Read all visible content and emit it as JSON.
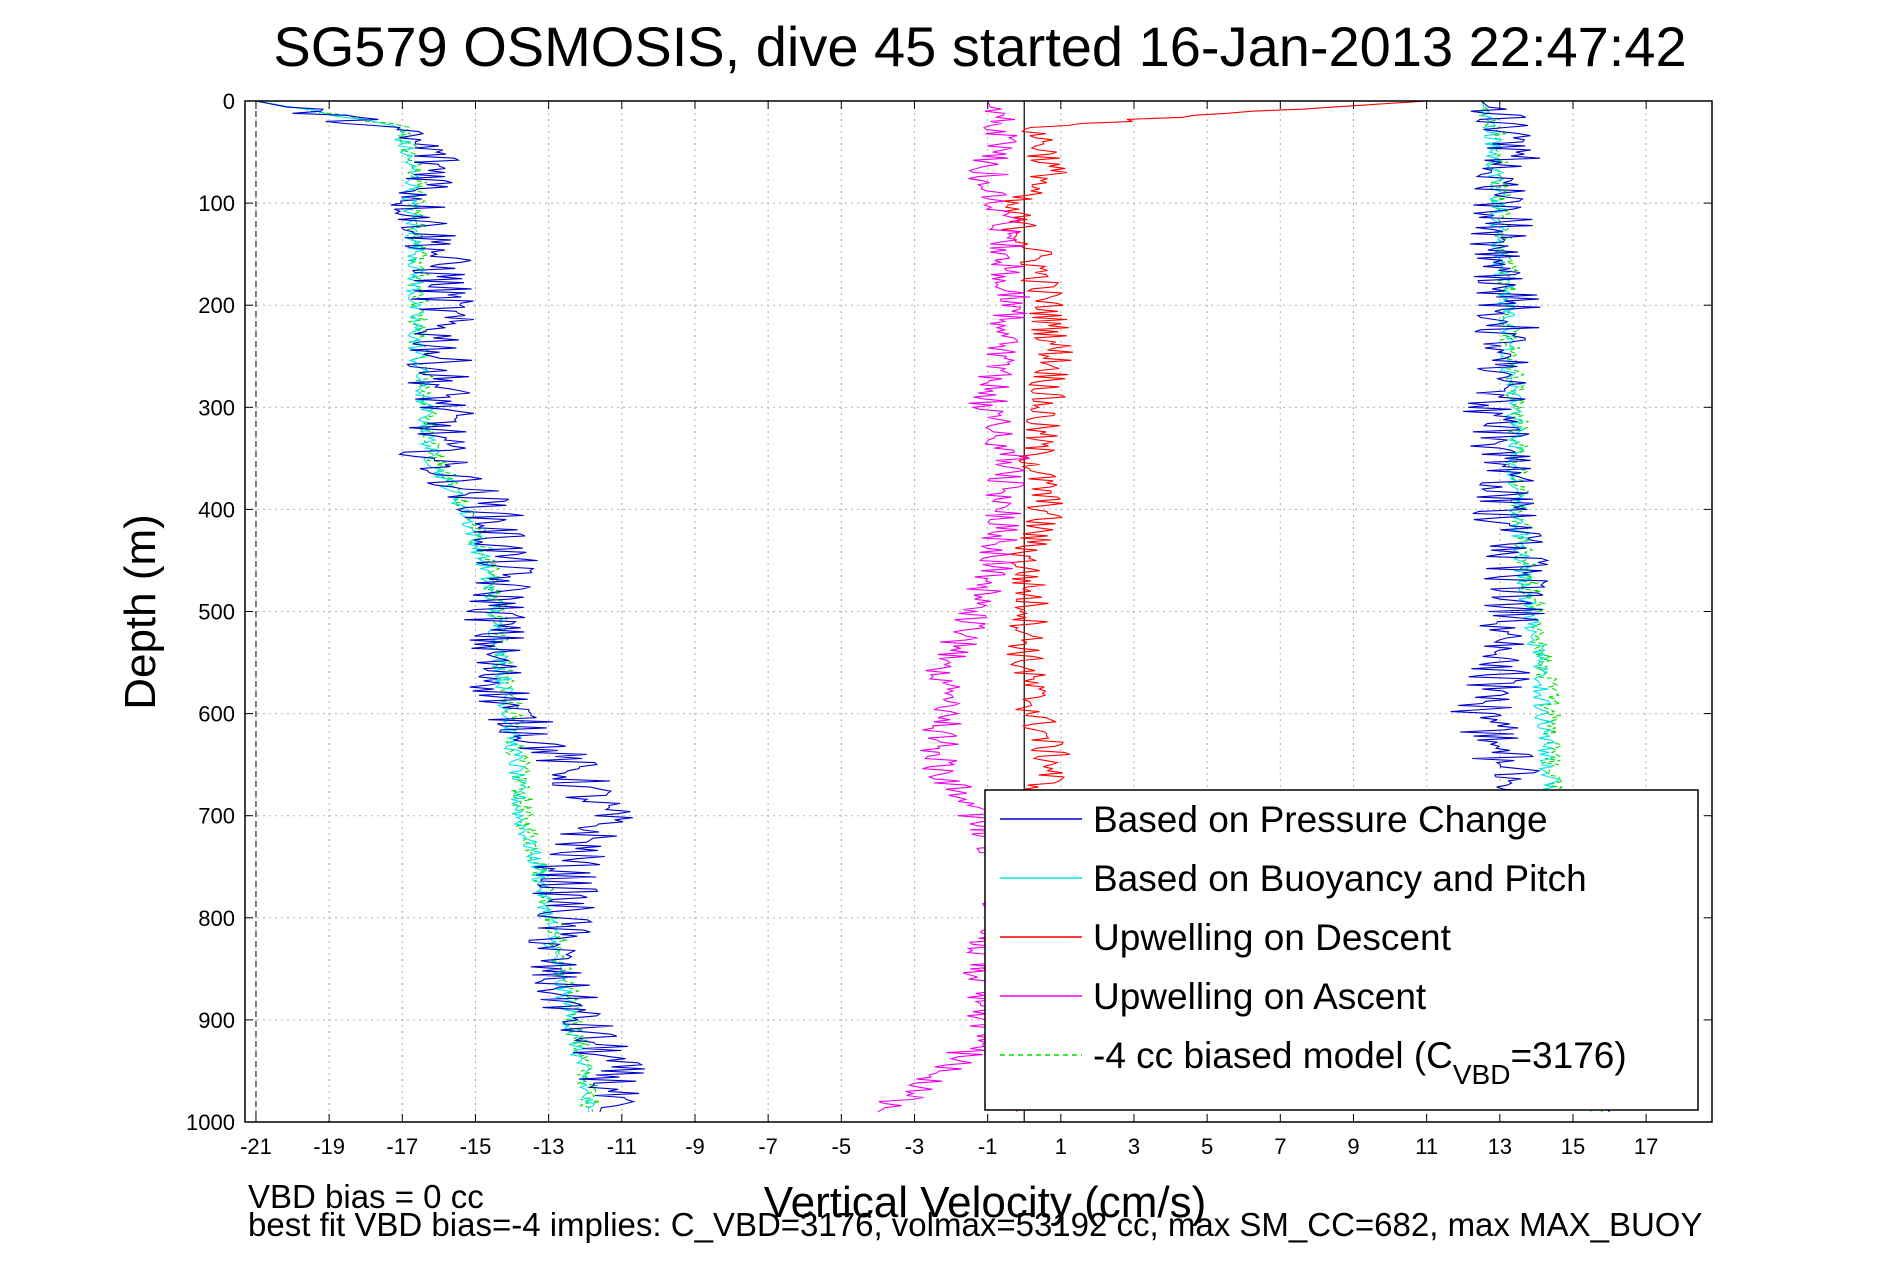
{
  "chart_data": {
    "type": "line",
    "title": "SG579 OSMOSIS, dive 45 started 16-Jan-2013 22:47:42",
    "xlabel": "Vertical Velocity (cm/s)",
    "ylabel": "Depth (m)",
    "xlim": [
      -21.3,
      18.8
    ],
    "ylim": [
      1000,
      0
    ],
    "y_reversed": true,
    "grid": true,
    "x_ticks": [
      -21,
      -19,
      -17,
      -15,
      -13,
      -11,
      -9,
      -7,
      -5,
      -3,
      -1,
      1,
      3,
      5,
      7,
      9,
      11,
      13,
      15,
      17
    ],
    "y_ticks": [
      0,
      100,
      200,
      300,
      400,
      500,
      600,
      700,
      800,
      900,
      1000
    ],
    "legend_position": "bottom-right",
    "legend": {
      "pressure": "Based on Pressure Change",
      "buoyancy": "Based on Buoyancy and Pitch",
      "descent": "Upwelling on Descent",
      "ascent": "Upwelling on Ascent",
      "biased_pre": "-4 cc biased model (C",
      "biased_sub": "VBD",
      "biased_post": "=3176)"
    },
    "series": [
      {
        "key": "pressure",
        "name": "Based on Pressure Change",
        "color": "#0000cc",
        "descent": {
          "depth": [
            0,
            25,
            50,
            75,
            100,
            150,
            200,
            250,
            300,
            350,
            400,
            450,
            500,
            550,
            600,
            650,
            700,
            750,
            800,
            850,
            900,
            950,
            990
          ],
          "velocity": [
            -21,
            -17.5,
            -16.2,
            -16,
            -16.6,
            -16,
            -15.9,
            -16,
            -15.9,
            -16.2,
            -14.6,
            -14.2,
            -14.4,
            -14.6,
            -14,
            -12.5,
            -11.5,
            -12.5,
            -12.6,
            -13,
            -12.2,
            -11.2,
            -11.6
          ]
        },
        "ascent": {
          "depth": [
            990,
            950,
            900,
            850,
            800,
            750,
            700,
            650,
            600,
            560,
            500,
            450,
            400,
            350,
            300,
            250,
            200,
            150,
            100,
            75,
            50,
            25,
            0
          ],
          "velocity": [
            16,
            14.8,
            14.2,
            13.8,
            13.6,
            13.4,
            13.5,
            13.2,
            12.5,
            13,
            13.4,
            13.5,
            13.1,
            13,
            12.8,
            13.1,
            13.3,
            13.1,
            13,
            12.6,
            13.4,
            13.3,
            12.5
          ]
        }
      },
      {
        "key": "buoyancy",
        "name": "Based on Buoyancy and Pitch",
        "color": "#00e5e5",
        "descent": {
          "depth": [
            0,
            25,
            50,
            75,
            100,
            150,
            200,
            250,
            300,
            350,
            400,
            450,
            500,
            550,
            600,
            650,
            700,
            750,
            800,
            850,
            900,
            950,
            990
          ],
          "velocity": [
            -21,
            -17.1,
            -16.9,
            -16.7,
            -16.8,
            -16.6,
            -16.7,
            -16.6,
            -16.4,
            -16.2,
            -15.3,
            -14.8,
            -14.5,
            -14.3,
            -14.1,
            -13.9,
            -13.8,
            -13.3,
            -13,
            -12.8,
            -12.4,
            -12.1,
            -11.9
          ]
        },
        "ascent": {
          "depth": [
            990,
            950,
            900,
            850,
            800,
            750,
            700,
            650,
            600,
            560,
            500,
            450,
            400,
            350,
            300,
            250,
            200,
            150,
            100,
            75,
            50,
            25,
            0
          ],
          "velocity": [
            15.5,
            14.6,
            14.6,
            14.5,
            14.5,
            14.4,
            14.5,
            14.3,
            14.2,
            14.1,
            13.8,
            13.6,
            13.5,
            13.4,
            13.4,
            13.2,
            13.2,
            13,
            12.9,
            12.9,
            12.8,
            12.8,
            12.5
          ]
        }
      },
      {
        "key": "descent",
        "name": "Upwelling on Descent",
        "color": "#ff0000",
        "descent": {
          "depth": [
            0,
            25,
            50,
            75,
            100,
            150,
            200,
            250,
            300,
            350,
            400,
            450,
            500,
            550,
            600,
            650,
            700,
            750,
            800,
            850,
            900,
            950,
            990
          ],
          "velocity": [
            11,
            0.3,
            0.6,
            0.7,
            -0.5,
            0.3,
            0.6,
            0.9,
            0.5,
            0.3,
            0.6,
            0,
            0.2,
            0,
            0.3,
            0.8,
            0.2,
            0,
            -0.2,
            -0.6,
            -0.3,
            0,
            -0.2
          ]
        }
      },
      {
        "key": "ascent",
        "name": "Upwelling on Ascent",
        "color": "#ee00ee",
        "ascent": {
          "depth": [
            990,
            950,
            900,
            850,
            800,
            750,
            700,
            650,
            600,
            560,
            500,
            450,
            400,
            350,
            300,
            250,
            200,
            150,
            100,
            75,
            50,
            25,
            0
          ],
          "velocity": [
            -4,
            -2,
            -1,
            -1.2,
            -0.8,
            -0.5,
            -1.3,
            -2.4,
            -2.2,
            -2.2,
            -1.4,
            -0.7,
            -0.6,
            -0.4,
            -1,
            -0.6,
            -0.3,
            -0.5,
            -0.6,
            -1,
            -0.8,
            -0.7,
            -1
          ]
        }
      },
      {
        "key": "biased",
        "name": "-4 cc biased model (CVBD=3176)",
        "color": "#00dd00",
        "dashed": true,
        "descent": {
          "depth": [
            0,
            25,
            50,
            75,
            100,
            150,
            200,
            250,
            300,
            350,
            400,
            450,
            500,
            550,
            600,
            650,
            700,
            750,
            800,
            850,
            900,
            950,
            990
          ],
          "velocity": [
            -21,
            -17,
            -16.8,
            -16.6,
            -16.6,
            -16.5,
            -16.6,
            -16.5,
            -16.3,
            -16.1,
            -15.2,
            -14.7,
            -14.4,
            -14.2,
            -14,
            -13.8,
            -13.7,
            -13.2,
            -12.9,
            -12.6,
            -12.3,
            -12,
            -11.8
          ]
        },
        "ascent": {
          "depth": [
            990,
            950,
            900,
            850,
            800,
            750,
            700,
            650,
            600,
            560,
            500,
            450,
            400,
            350,
            300,
            250,
            200,
            150,
            100,
            75,
            50,
            25,
            0
          ],
          "velocity": [
            15.8,
            14.8,
            14.8,
            14.6,
            14.5,
            14.4,
            14.6,
            14.4,
            14.4,
            14.3,
            14,
            13.7,
            13.6,
            13.5,
            13.5,
            13.3,
            13.3,
            13.1,
            13,
            13,
            12.9,
            12.9,
            12.5
          ]
        }
      }
    ]
  },
  "footer": {
    "line1": "VBD bias = 0 cc",
    "line2": "best fit VBD bias=-4 implies: C_VBD=3176, volmax=53192 cc, max SM_CC=682, max MAX_BUOY"
  }
}
